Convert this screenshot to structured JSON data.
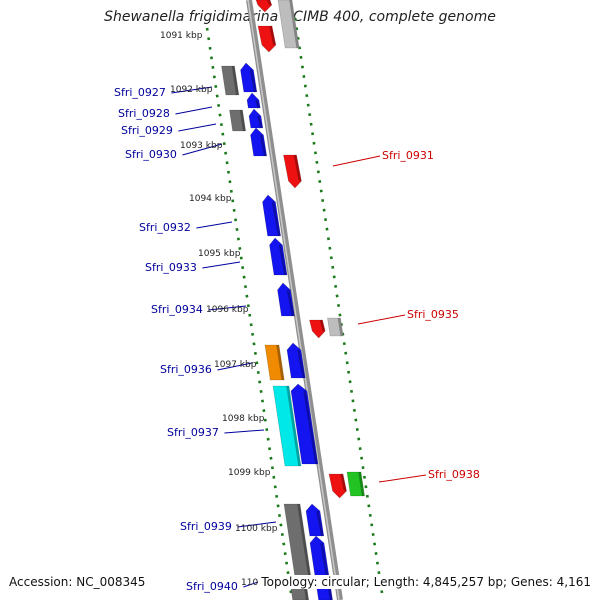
{
  "title": "Shewanella frigidimarina NCIMB 400, complete genome",
  "accession": "Accession: NC_008345",
  "summary": "Topology: circular; Length: 4,845,257 bp; Genes: 4,161",
  "colors": {
    "forward_label": "#00009c",
    "reverse_label": "#cc0000",
    "ruler": "#1a7a1a",
    "axis": "#8f8f8f"
  },
  "ruler_labels": [
    "1091 kbp",
    "1092 kbp",
    "1093 kbp",
    "1094 kbp",
    "1095 kbp",
    "1096 kbp",
    "1097 kbp",
    "1098 kbp",
    "1099 kbp",
    "1100 kbp",
    "110"
  ],
  "forward_gene_labels": [
    "Sfri_0927",
    "Sfri_0928",
    "Sfri_0929",
    "Sfri_0930",
    "Sfri_0932",
    "Sfri_0933",
    "Sfri_0934",
    "Sfri_0936",
    "Sfri_0937",
    "Sfri_0939",
    "Sfri_0940"
  ],
  "reverse_gene_labels": [
    "Sfri_0931",
    "Sfri_0935",
    "Sfri_0938"
  ]
}
